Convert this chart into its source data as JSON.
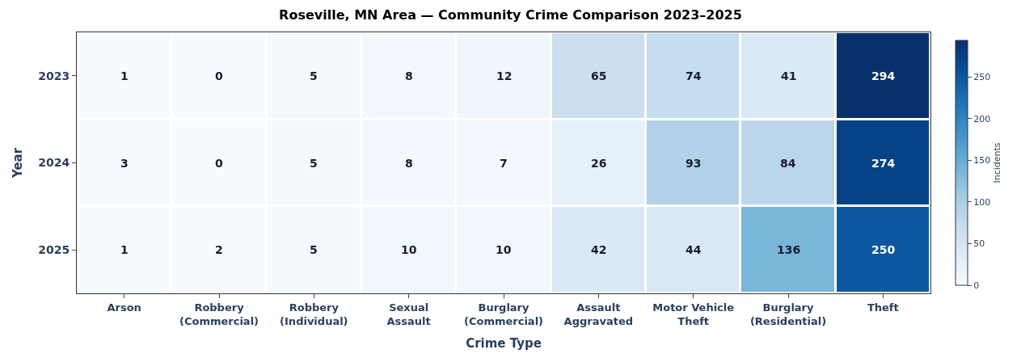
{
  "chart_data": {
    "type": "heatmap",
    "title": "Roseville, MN Area — Community Crime Comparison 2023–2025",
    "xlabel": "Crime Type",
    "ylabel": "Year",
    "clabel": "Incidents",
    "categories": [
      "Arson",
      "Robbery\n(Commercial)",
      "Robbery\n(Individual)",
      "Sexual\nAssault",
      "Burglary\n(Commercial)",
      "Assault\nAggravated",
      "Motor Vehicle\nTheft",
      "Burglary\n(Residential)",
      "Theft"
    ],
    "y_categories": [
      "2023",
      "2024",
      "2025"
    ],
    "cells": [
      [
        1,
        0,
        5,
        8,
        12,
        65,
        74,
        41,
        294
      ],
      [
        3,
        0,
        5,
        8,
        7,
        26,
        93,
        84,
        274
      ],
      [
        1,
        2,
        5,
        10,
        10,
        42,
        44,
        136,
        250
      ]
    ],
    "clim": [
      0,
      294
    ],
    "cticks": [
      0,
      50,
      100,
      150,
      200,
      250
    ],
    "data_labels": true
  }
}
